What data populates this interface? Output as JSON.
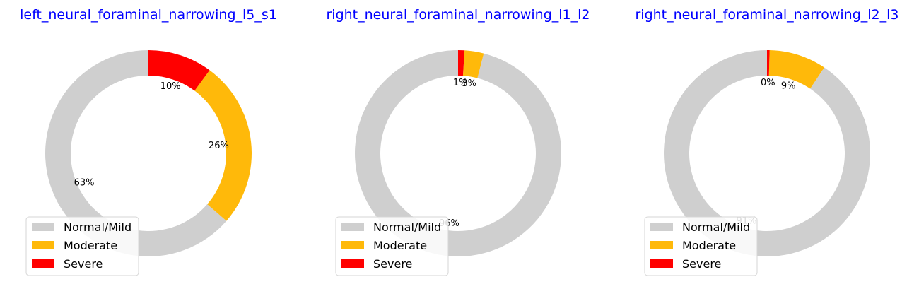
{
  "chart_data": [
    {
      "type": "pie",
      "title": "left_neural_foraminal_narrowing_l5_s1",
      "categories": [
        "Normal/Mild",
        "Moderate",
        "Severe"
      ],
      "values": [
        63,
        26,
        10
      ],
      "labels": [
        "63%",
        "26%",
        "10%"
      ],
      "legend": "bottom-left"
    },
    {
      "type": "pie",
      "title": "right_neural_foraminal_narrowing_l1_l2",
      "categories": [
        "Normal/Mild",
        "Moderate",
        "Severe"
      ],
      "values": [
        96,
        3,
        1
      ],
      "labels": [
        "96%",
        "3%",
        "1%"
      ],
      "legend": "bottom-left"
    },
    {
      "type": "pie",
      "title": "right_neural_foraminal_narrowing_l2_l3",
      "categories": [
        "Normal/Mild",
        "Moderate",
        "Severe"
      ],
      "values": [
        91,
        9,
        0.4
      ],
      "labels": [
        "91%",
        "9%",
        "0%"
      ],
      "legend": "bottom-left"
    }
  ],
  "colors": {
    "Normal/Mild": "#cfcfcf",
    "Moderate": "#ffb90a",
    "Severe": "#ff0000",
    "title": "#0000ff"
  }
}
